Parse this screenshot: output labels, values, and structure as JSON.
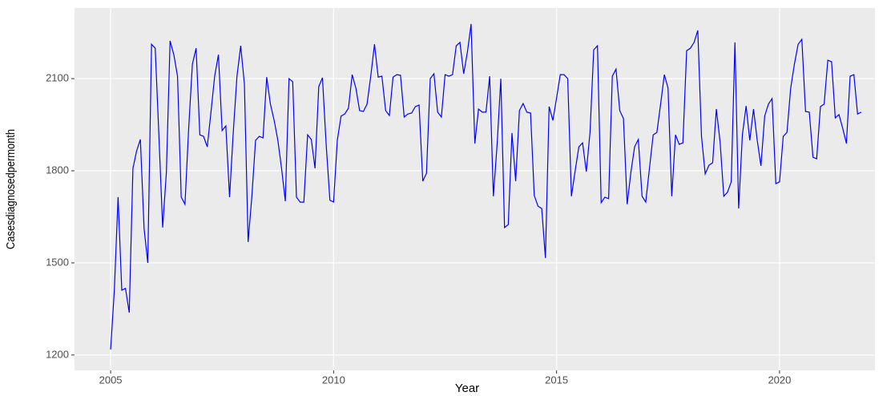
{
  "chart_data": {
    "type": "line",
    "x_label": "Year",
    "y_label": "Casesdiagnosedpermonth",
    "color": "#0000ff",
    "grid": true,
    "xlim": [
      2004.19,
      2022.14
    ],
    "ylim": [
      1150,
      2330
    ],
    "xticks": [
      2005,
      2010,
      2015,
      2020
    ],
    "yticks": [
      1200,
      1500,
      1800,
      2100
    ],
    "x": [
      2005,
      2005.083,
      2005.167,
      2005.25,
      2005.333,
      2005.417,
      2005.5,
      2005.583,
      2005.667,
      2005.75,
      2005.833,
      2005.917,
      2006,
      2006.083,
      2006.167,
      2006.25,
      2006.333,
      2006.417,
      2006.5,
      2006.583,
      2006.667,
      2006.75,
      2006.833,
      2006.917,
      2007,
      2007.083,
      2007.167,
      2007.25,
      2007.333,
      2007.417,
      2007.5,
      2007.583,
      2007.667,
      2007.75,
      2007.833,
      2007.917,
      2008,
      2008.083,
      2008.167,
      2008.25,
      2008.333,
      2008.417,
      2008.5,
      2008.583,
      2008.667,
      2008.75,
      2008.833,
      2008.917,
      2009,
      2009.083,
      2009.167,
      2009.25,
      2009.333,
      2009.417,
      2009.5,
      2009.583,
      2009.667,
      2009.75,
      2009.833,
      2009.917,
      2010,
      2010.083,
      2010.167,
      2010.25,
      2010.333,
      2010.417,
      2010.5,
      2010.583,
      2010.667,
      2010.75,
      2010.833,
      2010.917,
      2011,
      2011.083,
      2011.167,
      2011.25,
      2011.333,
      2011.417,
      2011.5,
      2011.583,
      2011.667,
      2011.75,
      2011.833,
      2011.917,
      2012,
      2012.083,
      2012.167,
      2012.25,
      2012.333,
      2012.417,
      2012.5,
      2012.583,
      2012.667,
      2012.75,
      2012.833,
      2012.917,
      2013,
      2013.083,
      2013.167,
      2013.25,
      2013.333,
      2013.417,
      2013.5,
      2013.583,
      2013.667,
      2013.75,
      2013.833,
      2013.917,
      2014,
      2014.083,
      2014.167,
      2014.25,
      2014.333,
      2014.417,
      2014.5,
      2014.583,
      2014.667,
      2014.75,
      2014.833,
      2014.917,
      2015,
      2015.083,
      2015.167,
      2015.25,
      2015.333,
      2015.417,
      2015.5,
      2015.583,
      2015.667,
      2015.75,
      2015.833,
      2015.917,
      2016,
      2016.083,
      2016.167,
      2016.25,
      2016.333,
      2016.417,
      2016.5,
      2016.583,
      2016.667,
      2016.75,
      2016.833,
      2016.917,
      2017,
      2017.083,
      2017.167,
      2017.25,
      2017.333,
      2017.417,
      2017.5,
      2017.583,
      2017.667,
      2017.75,
      2017.833,
      2017.917,
      2018,
      2018.083,
      2018.167,
      2018.25,
      2018.333,
      2018.417,
      2018.5,
      2018.583,
      2018.667,
      2018.75,
      2018.833,
      2018.917,
      2019,
      2019.083,
      2019.167,
      2019.25,
      2019.333,
      2019.417,
      2019.5,
      2019.583,
      2019.667,
      2019.75,
      2019.833,
      2019.917,
      2020,
      2020.083,
      2020.167,
      2020.25,
      2020.333,
      2020.417,
      2020.5,
      2020.583,
      2020.667,
      2020.75,
      2020.833,
      2020.917,
      2021,
      2021.083,
      2021.167,
      2021.25,
      2021.333,
      2021.417,
      2021.5,
      2021.583,
      2021.667,
      2021.75,
      2021.833
    ],
    "values": [
      1218,
      1411,
      1714,
      1411,
      1417,
      1338,
      1808,
      1865,
      1902,
      1612,
      1500,
      2212,
      2199,
      1912,
      1615,
      1795,
      2223,
      2178,
      2108,
      1714,
      1691,
      1938,
      2147,
      2199,
      1917,
      1912,
      1878,
      1991,
      2108,
      2178,
      1931,
      1946,
      1714,
      1925,
      2108,
      2207,
      2082,
      1568,
      1717,
      1899,
      1912,
      1907,
      2105,
      2017,
      1964,
      1899,
      1808,
      1701,
      2100,
      2090,
      1714,
      1698,
      1698,
      1917,
      1902,
      1808,
      2074,
      2103,
      1886,
      1704,
      1698,
      1899,
      1978,
      1985,
      2004,
      2113,
      2069,
      1996,
      1993,
      2017,
      2108,
      2212,
      2105,
      2108,
      1996,
      1980,
      2105,
      2113,
      2111,
      1975,
      1985,
      1988,
      2009,
      2014,
      1766,
      1792,
      2100,
      2116,
      1991,
      1975,
      2113,
      2108,
      2113,
      2207,
      2218,
      2116,
      2186,
      2278,
      1889,
      2001,
      1991,
      1991,
      2108,
      1717,
      1886,
      2100,
      1615,
      1625,
      1923,
      1766,
      1996,
      2019,
      1991,
      1988,
      1719,
      1685,
      1677,
      1516,
      2009,
      1964,
      2037,
      2113,
      2113,
      2100,
      1717,
      1800,
      1878,
      1891,
      1797,
      1925,
      2194,
      2207,
      1696,
      1714,
      1709,
      2108,
      2131,
      1996,
      1970,
      1691,
      1795,
      1878,
      1902,
      1717,
      1698,
      1808,
      1917,
      1925,
      2017,
      2113,
      2069,
      1717,
      1917,
      1886,
      1891,
      2191,
      2199,
      2218,
      2257,
      1912,
      1790,
      1818,
      1826,
      2001,
      1894,
      1717,
      1730,
      1764,
      2218,
      1677,
      1917,
      2011,
      1899,
      2001,
      1899,
      1816,
      1978,
      2017,
      2035,
      1758,
      1764,
      1912,
      1925,
      2069,
      2147,
      2212,
      2228,
      1993,
      1991,
      1844,
      1839,
      2009,
      2017,
      2160,
      2155,
      1972,
      1983,
      1938,
      1889,
      2108,
      2113,
      1985,
      1991
    ]
  }
}
